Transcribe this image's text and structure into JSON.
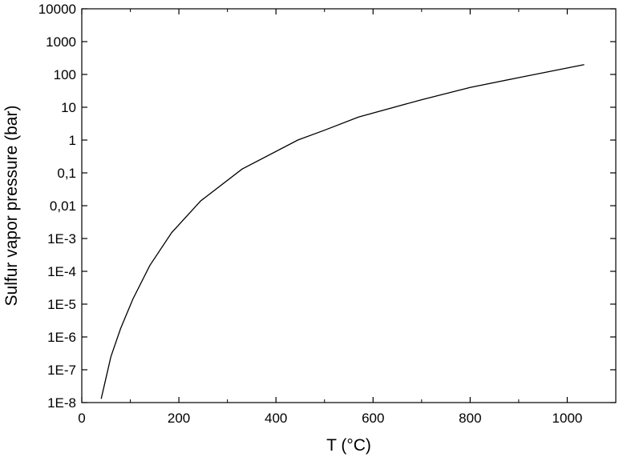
{
  "chart_data": {
    "type": "line",
    "title": "",
    "xlabel": "T (°C)",
    "ylabel": "Sulfur vapor pressure (bar)",
    "xlim": [
      0,
      1100
    ],
    "ylim": [
      1e-08,
      10000
    ],
    "yscale": "log",
    "grid": false,
    "x_ticks": [
      0,
      200,
      400,
      600,
      800,
      1000
    ],
    "x_tick_labels": [
      "0",
      "200",
      "400",
      "600",
      "800",
      "1000"
    ],
    "y_ticks": [
      1e-08,
      1e-07,
      1e-06,
      1e-05,
      0.0001,
      0.001,
      0.01,
      0.1,
      1,
      10,
      100,
      1000,
      10000
    ],
    "y_tick_labels": [
      "1E-8",
      "1E-7",
      "1E-6",
      "1E-5",
      "1E-4",
      "1E-3",
      "0,01",
      "0,1",
      "1",
      "10",
      "100",
      "1000",
      "10000"
    ],
    "line_color": "#000000",
    "series": [
      {
        "x": [
          40,
          60,
          80,
          105,
          140,
          185,
          245,
          330,
          445,
          500,
          570,
          700,
          800,
          900,
          1035
        ],
        "y": [
          1.3e-08,
          2.5e-07,
          1.8e-06,
          1.4e-05,
          0.00015,
          0.0015,
          0.014,
          0.13,
          1.0,
          2.0,
          5.0,
          17,
          40,
          80,
          200
        ]
      }
    ]
  }
}
